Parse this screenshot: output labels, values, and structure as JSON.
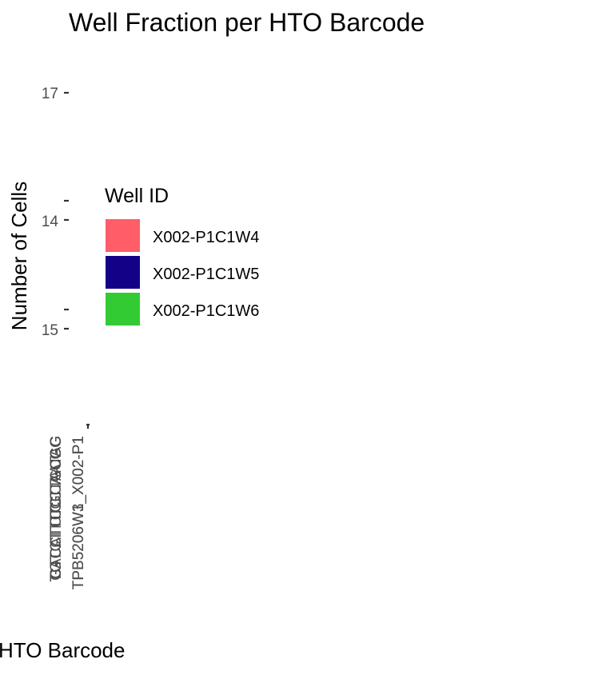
{
  "chart_data": {
    "type": "bar",
    "title": "Well Fraction per HTO Barcode",
    "xlabel": "HTO Barcode",
    "ylabel": "Number of Cells",
    "y_ticks": [
      "17",
      "14",
      "15"
    ],
    "x_tick_labels": [
      "TGTCTTTCCTGCCG",
      "CTCCTCTGCAATAC",
      "GACATTCCTTACGG",
      "TPB5206W3_X002-P1",
      "TPB5206W1_X002-P1"
    ],
    "legend": {
      "title": "Well ID",
      "position": "left",
      "entries": [
        {
          "label": "X002-P1C1W4",
          "color": "#FF5D68"
        },
        {
          "label": "X002-P1C1W5",
          "color": "#130188"
        },
        {
          "label": "X002-P1C1W6",
          "color": "#33CB33"
        }
      ]
    },
    "series": [
      {
        "name": "X002-P1C1W4",
        "values": []
      },
      {
        "name": "X002-P1C1W5",
        "values": []
      },
      {
        "name": "X002-P1C1W6",
        "values": []
      }
    ],
    "grid": false
  }
}
